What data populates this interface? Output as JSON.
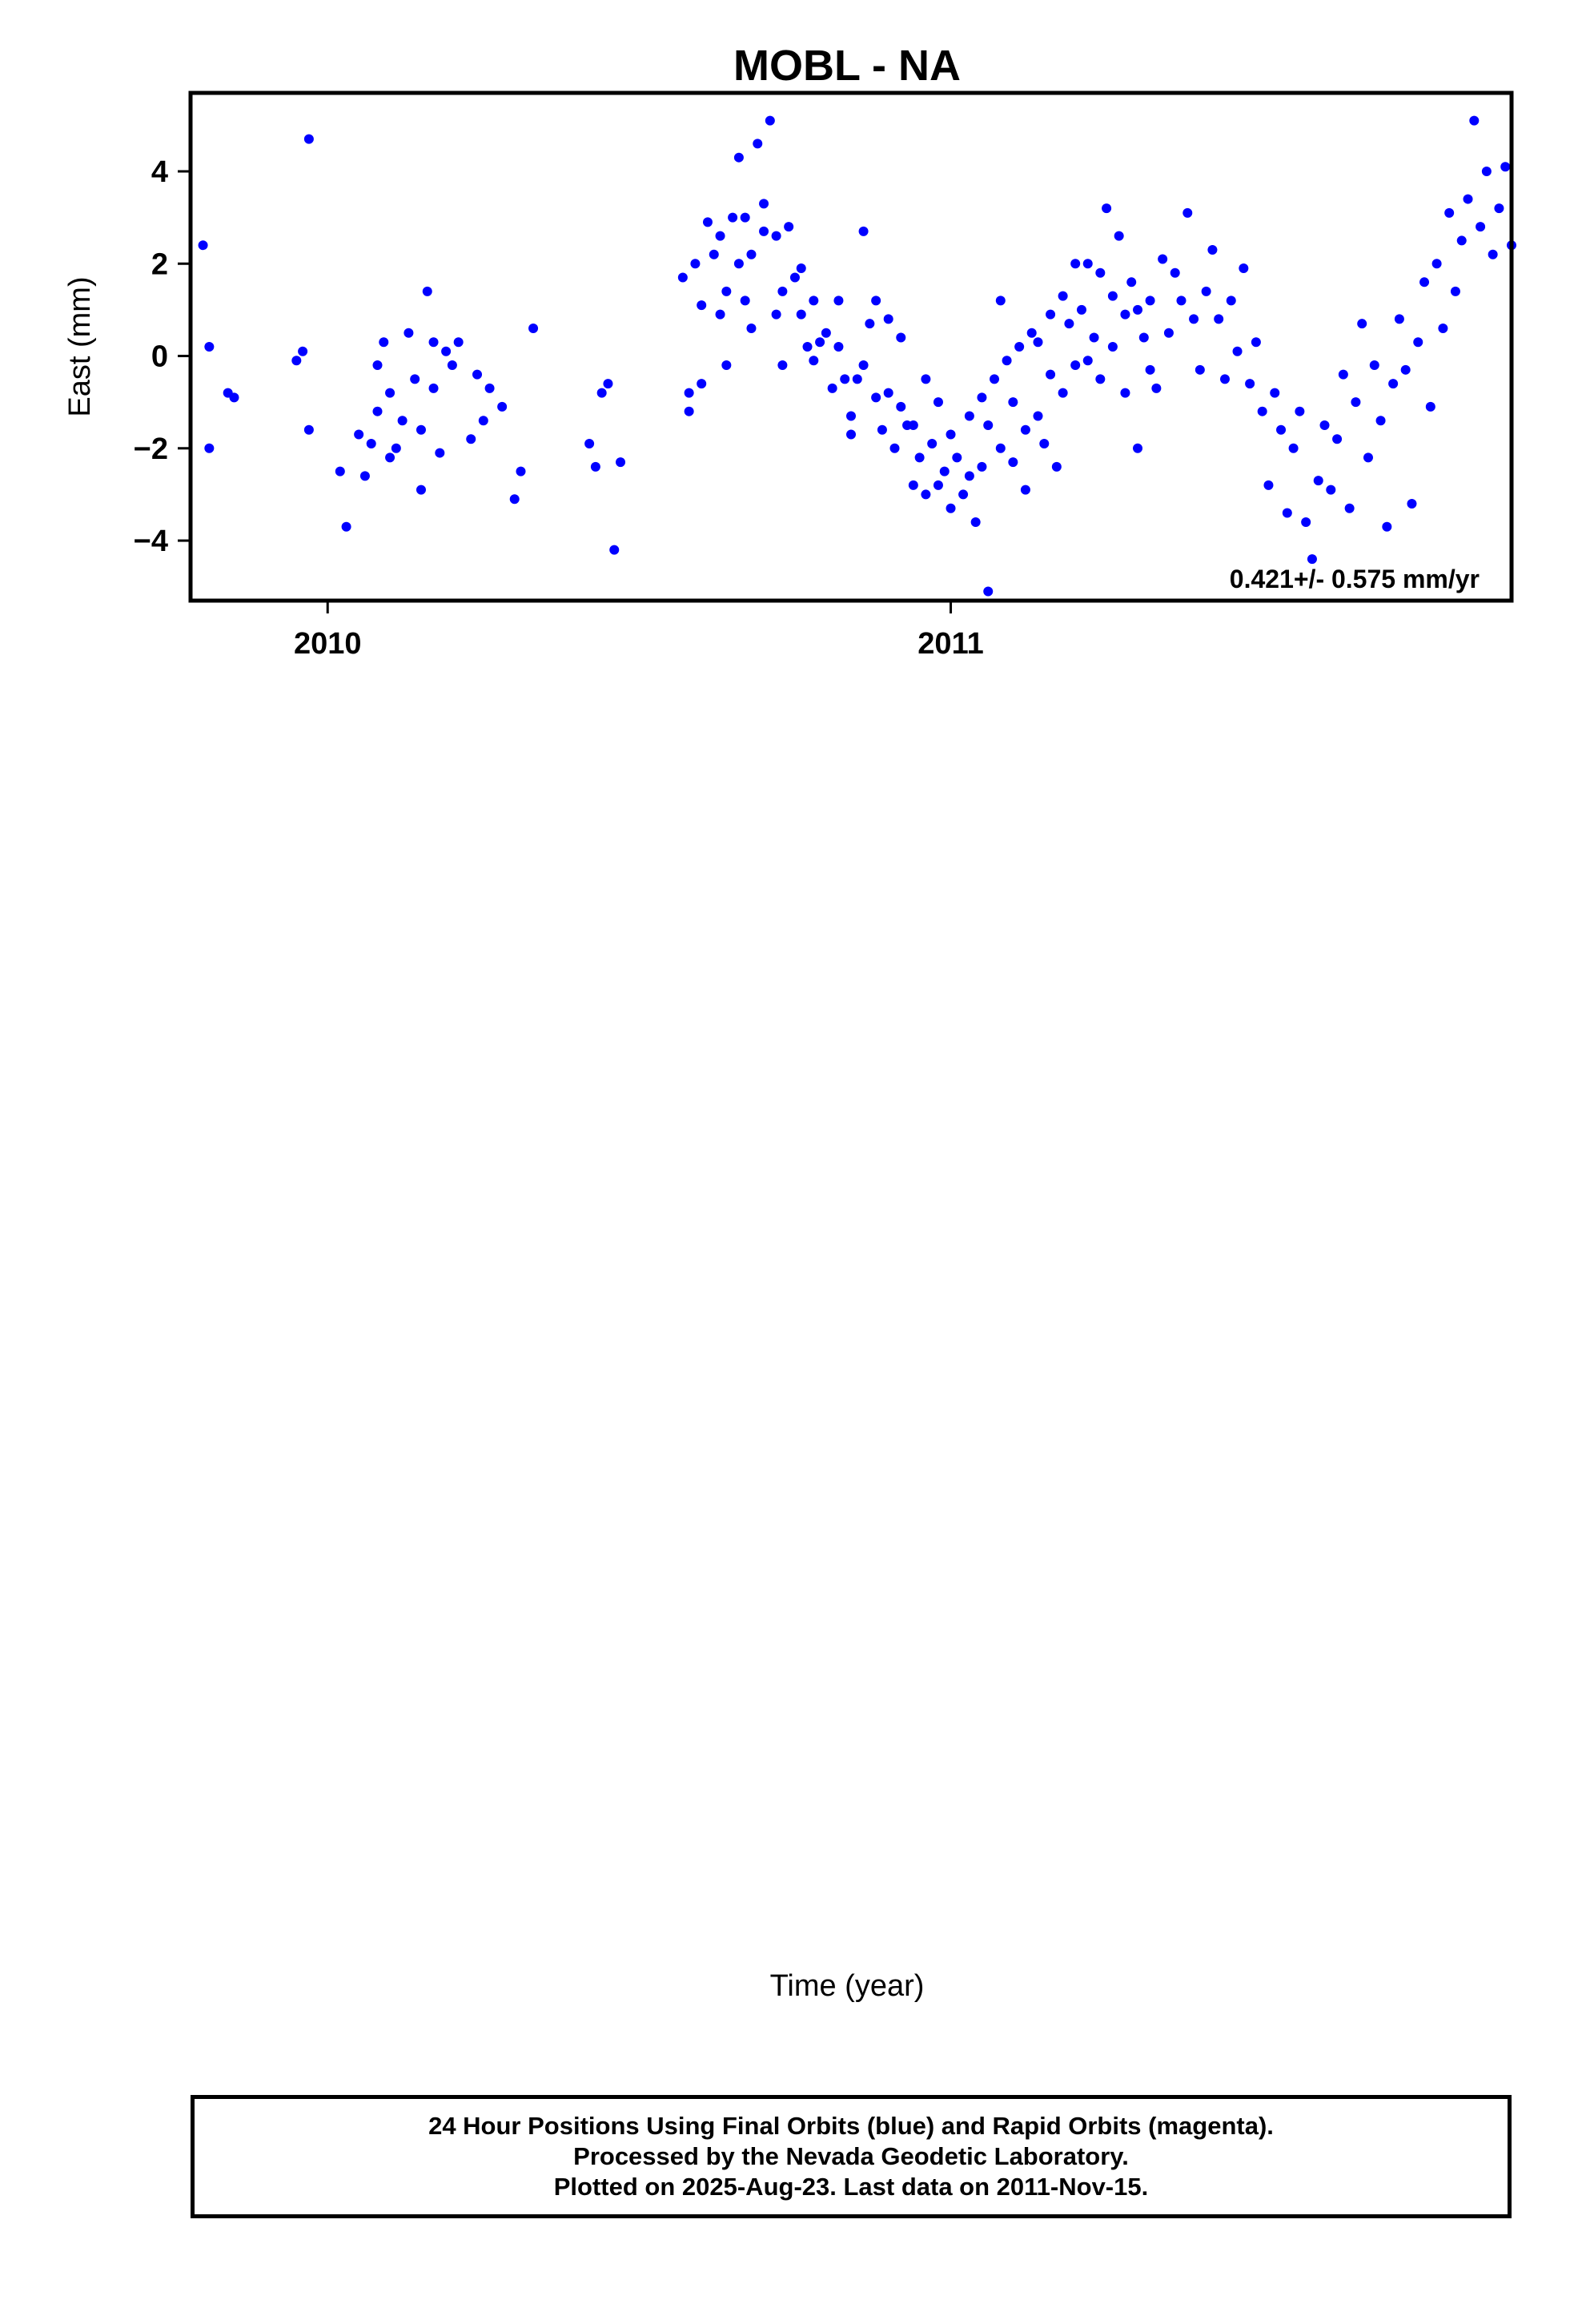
{
  "figure_title": "MOBL - NA",
  "xlabel": "Time (year)",
  "colors": {
    "final_orbits": "#0000ff",
    "rapid_orbits": "#ff00ff",
    "model_fit": "#ff0000",
    "frame": "#000000"
  },
  "footer": {
    "line1": "24 Hour Positions Using Final Orbits (blue) and Rapid Orbits (magenta).",
    "line2": "Processed by the Nevada Geodetic Laboratory.",
    "line3": "Plotted on 2025-Aug-23. Last data on 2011-Nov-15."
  },
  "chart_data": [
    {
      "type": "scatter",
      "panel": "east",
      "title": "MOBL - NA",
      "xlabel": "",
      "ylabel": "East (mm)",
      "xlim": [
        2009.78,
        2011.9
      ],
      "ylim": [
        -5.3,
        5.7
      ],
      "x_ticks": [
        2010,
        2011
      ],
      "y_ticks": [
        -4,
        -2,
        0,
        2,
        4
      ],
      "grid": false,
      "velocity_label": "0.421+/- 0.575 mm/yr",
      "series": [
        {
          "role": "daily positions",
          "marker": "dot",
          "points": [
            [
              2009.8,
              2.4
            ],
            [
              2009.81,
              -2.0
            ],
            [
              2009.81,
              0.2
            ],
            [
              2009.84,
              -0.8
            ],
            [
              2009.85,
              -0.9
            ],
            [
              2009.95,
              -0.1
            ],
            [
              2009.96,
              0.1
            ],
            [
              2009.97,
              4.7
            ],
            [
              2009.97,
              -1.6
            ],
            [
              2010.02,
              -2.5
            ],
            [
              2010.03,
              -3.7
            ],
            [
              2010.05,
              -1.7
            ],
            [
              2010.06,
              -2.6
            ],
            [
              2010.07,
              -1.9
            ],
            [
              2010.08,
              -0.2
            ],
            [
              2010.08,
              -1.2
            ],
            [
              2010.09,
              0.3
            ],
            [
              2010.1,
              -2.2
            ],
            [
              2010.1,
              -0.8
            ],
            [
              2010.11,
              -2.0
            ],
            [
              2010.12,
              -1.4
            ],
            [
              2010.13,
              0.5
            ],
            [
              2010.14,
              -0.5
            ],
            [
              2010.15,
              -1.6
            ],
            [
              2010.15,
              -2.9
            ],
            [
              2010.16,
              1.4
            ],
            [
              2010.17,
              0.3
            ],
            [
              2010.17,
              -0.7
            ],
            [
              2010.18,
              -2.1
            ],
            [
              2010.19,
              0.1
            ],
            [
              2010.2,
              -0.2
            ],
            [
              2010.21,
              0.3
            ],
            [
              2010.23,
              -1.8
            ],
            [
              2010.24,
              -0.4
            ],
            [
              2010.25,
              -1.4
            ],
            [
              2010.26,
              -0.7
            ],
            [
              2010.28,
              -1.1
            ],
            [
              2010.3,
              -3.1
            ],
            [
              2010.31,
              -2.5
            ],
            [
              2010.33,
              0.6
            ],
            [
              2010.42,
              -1.9
            ],
            [
              2010.43,
              -2.4
            ],
            [
              2010.44,
              -0.8
            ],
            [
              2010.45,
              -0.6
            ],
            [
              2010.46,
              -4.2
            ],
            [
              2010.47,
              -2.3
            ],
            [
              2010.57,
              1.7
            ],
            [
              2010.58,
              -0.8
            ],
            [
              2010.58,
              -1.2
            ],
            [
              2010.59,
              2.0
            ],
            [
              2010.6,
              1.1
            ],
            [
              2010.6,
              -0.6
            ],
            [
              2010.61,
              2.9
            ],
            [
              2010.62,
              2.2
            ],
            [
              2010.63,
              0.9
            ],
            [
              2010.63,
              2.6
            ],
            [
              2010.64,
              -0.2
            ],
            [
              2010.64,
              1.4
            ],
            [
              2010.65,
              3.0
            ],
            [
              2010.66,
              2.0
            ],
            [
              2010.66,
              4.3
            ],
            [
              2010.67,
              1.2
            ],
            [
              2010.67,
              3.0
            ],
            [
              2010.68,
              2.2
            ],
            [
              2010.68,
              0.6
            ],
            [
              2010.69,
              4.6
            ],
            [
              2010.7,
              2.7
            ],
            [
              2010.7,
              3.3
            ],
            [
              2010.71,
              5.1
            ],
            [
              2010.72,
              0.9
            ],
            [
              2010.72,
              2.6
            ],
            [
              2010.73,
              1.4
            ],
            [
              2010.73,
              -0.2
            ],
            [
              2010.74,
              2.8
            ],
            [
              2010.75,
              1.7
            ],
            [
              2010.76,
              0.9
            ],
            [
              2010.76,
              1.9
            ],
            [
              2010.77,
              0.2
            ],
            [
              2010.78,
              1.2
            ],
            [
              2010.78,
              -0.1
            ],
            [
              2010.79,
              0.3
            ],
            [
              2010.8,
              0.5
            ],
            [
              2010.81,
              -0.7
            ],
            [
              2010.82,
              1.2
            ],
            [
              2010.82,
              0.2
            ],
            [
              2010.83,
              -0.5
            ],
            [
              2010.84,
              -1.3
            ],
            [
              2010.84,
              -1.7
            ],
            [
              2010.85,
              -0.5
            ],
            [
              2010.86,
              2.7
            ],
            [
              2010.86,
              -0.2
            ],
            [
              2010.87,
              0.7
            ],
            [
              2010.88,
              1.2
            ],
            [
              2010.88,
              -0.9
            ],
            [
              2010.89,
              -1.6
            ],
            [
              2010.9,
              0.8
            ],
            [
              2010.9,
              -0.8
            ],
            [
              2010.91,
              -2.0
            ],
            [
              2010.92,
              -1.1
            ],
            [
              2010.92,
              0.4
            ],
            [
              2010.93,
              -1.5
            ],
            [
              2010.94,
              -1.5
            ],
            [
              2010.94,
              -2.8
            ],
            [
              2010.95,
              -2.2
            ],
            [
              2010.96,
              -0.5
            ],
            [
              2010.96,
              -3.0
            ],
            [
              2010.97,
              -1.9
            ],
            [
              2010.98,
              -2.8
            ],
            [
              2010.98,
              -1.0
            ],
            [
              2010.99,
              -2.5
            ],
            [
              2011.0,
              -3.3
            ],
            [
              2011.0,
              -1.7
            ],
            [
              2011.01,
              -2.2
            ],
            [
              2011.02,
              -3.0
            ],
            [
              2011.03,
              -2.6
            ],
            [
              2011.03,
              -1.3
            ],
            [
              2011.04,
              -3.6
            ],
            [
              2011.05,
              -0.9
            ],
            [
              2011.05,
              -2.4
            ],
            [
              2011.06,
              -1.5
            ],
            [
              2011.06,
              -5.1
            ],
            [
              2011.07,
              -0.5
            ],
            [
              2011.08,
              1.2
            ],
            [
              2011.08,
              -2.0
            ],
            [
              2011.09,
              -0.1
            ],
            [
              2011.1,
              -2.3
            ],
            [
              2011.1,
              -1.0
            ],
            [
              2011.11,
              0.2
            ],
            [
              2011.12,
              -1.6
            ],
            [
              2011.12,
              -2.9
            ],
            [
              2011.13,
              0.5
            ],
            [
              2011.14,
              -1.3
            ],
            [
              2011.14,
              0.3
            ],
            [
              2011.15,
              -1.9
            ],
            [
              2011.16,
              0.9
            ],
            [
              2011.16,
              -0.4
            ],
            [
              2011.17,
              -2.4
            ],
            [
              2011.18,
              1.3
            ],
            [
              2011.18,
              -0.8
            ],
            [
              2011.19,
              0.7
            ],
            [
              2011.2,
              -0.2
            ],
            [
              2011.2,
              2.0
            ],
            [
              2011.21,
              1.0
            ],
            [
              2011.22,
              -0.1
            ],
            [
              2011.22,
              2.0
            ],
            [
              2011.23,
              0.4
            ],
            [
              2011.24,
              1.8
            ],
            [
              2011.24,
              -0.5
            ],
            [
              2011.25,
              3.2
            ],
            [
              2011.26,
              1.3
            ],
            [
              2011.26,
              0.2
            ],
            [
              2011.27,
              2.6
            ],
            [
              2011.28,
              0.9
            ],
            [
              2011.28,
              -0.8
            ],
            [
              2011.29,
              1.6
            ],
            [
              2011.3,
              1.0
            ],
            [
              2011.3,
              -2.0
            ],
            [
              2011.31,
              0.4
            ],
            [
              2011.32,
              -0.3
            ],
            [
              2011.32,
              1.2
            ],
            [
              2011.33,
              -0.7
            ],
            [
              2011.34,
              2.1
            ],
            [
              2011.35,
              0.5
            ],
            [
              2011.36,
              1.8
            ],
            [
              2011.37,
              1.2
            ],
            [
              2011.38,
              3.1
            ],
            [
              2011.39,
              0.8
            ],
            [
              2011.4,
              -0.3
            ],
            [
              2011.41,
              1.4
            ],
            [
              2011.42,
              2.3
            ],
            [
              2011.43,
              0.8
            ],
            [
              2011.44,
              -0.5
            ],
            [
              2011.45,
              1.2
            ],
            [
              2011.46,
              0.1
            ],
            [
              2011.47,
              1.9
            ],
            [
              2011.48,
              -0.6
            ],
            [
              2011.49,
              0.3
            ],
            [
              2011.5,
              -1.2
            ],
            [
              2011.51,
              -2.8
            ],
            [
              2011.52,
              -0.8
            ],
            [
              2011.53,
              -1.6
            ],
            [
              2011.54,
              -3.4
            ],
            [
              2011.55,
              -2.0
            ],
            [
              2011.56,
              -1.2
            ],
            [
              2011.57,
              -3.6
            ],
            [
              2011.58,
              -4.4
            ],
            [
              2011.59,
              -2.7
            ],
            [
              2011.6,
              -1.5
            ],
            [
              2011.61,
              -2.9
            ],
            [
              2011.62,
              -1.8
            ],
            [
              2011.63,
              -0.4
            ],
            [
              2011.64,
              -3.3
            ],
            [
              2011.65,
              -1.0
            ],
            [
              2011.66,
              0.7
            ],
            [
              2011.67,
              -2.2
            ],
            [
              2011.68,
              -0.2
            ],
            [
              2011.69,
              -1.4
            ],
            [
              2011.7,
              -3.7
            ],
            [
              2011.71,
              -0.6
            ],
            [
              2011.72,
              0.8
            ],
            [
              2011.73,
              -0.3
            ],
            [
              2011.74,
              -3.2
            ],
            [
              2011.75,
              0.3
            ],
            [
              2011.76,
              1.6
            ],
            [
              2011.77,
              -1.1
            ],
            [
              2011.78,
              2.0
            ],
            [
              2011.79,
              0.6
            ],
            [
              2011.8,
              3.1
            ],
            [
              2011.81,
              1.4
            ],
            [
              2011.82,
              2.5
            ],
            [
              2011.83,
              3.4
            ],
            [
              2011.84,
              5.1
            ],
            [
              2011.85,
              2.8
            ],
            [
              2011.86,
              4.0
            ],
            [
              2011.87,
              2.2
            ],
            [
              2011.88,
              3.2
            ],
            [
              2011.89,
              4.1
            ],
            [
              2011.9,
              2.4
            ]
          ],
          "notes_removed": true
        }
      ]
    }
  ]
}
